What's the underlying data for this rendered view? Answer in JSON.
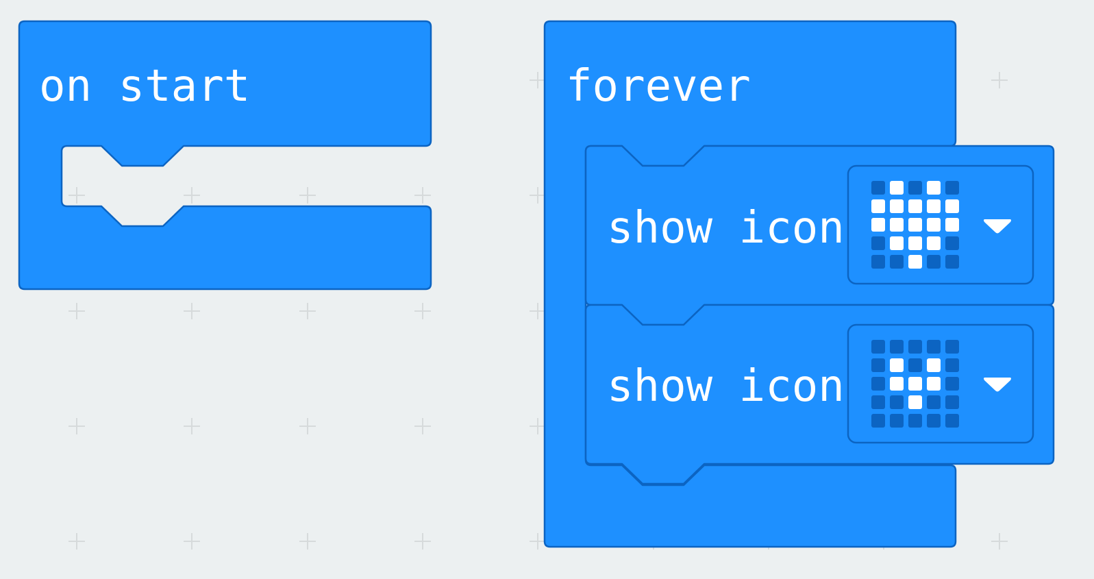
{
  "colors": {
    "workspace_bg": "#ecf0f1",
    "basic_block": "#1e90ff",
    "basic_block_border": "#0c64c2",
    "led_on": "#ffffff",
    "led_off": "#0c64c2"
  },
  "blocks": {
    "on_start": {
      "label": "on start"
    },
    "forever": {
      "label": "forever",
      "statements": [
        {
          "label": "show icon",
          "icon_name": "heart",
          "dropdown_icon": "triangle-down-icon",
          "leds": [
            [
              0,
              1,
              0,
              1,
              0
            ],
            [
              1,
              1,
              1,
              1,
              1
            ],
            [
              1,
              1,
              1,
              1,
              1
            ],
            [
              0,
              1,
              1,
              1,
              0
            ],
            [
              0,
              0,
              1,
              0,
              0
            ]
          ]
        },
        {
          "label": "show icon",
          "icon_name": "small-heart",
          "dropdown_icon": "triangle-down-icon",
          "leds": [
            [
              0,
              0,
              0,
              0,
              0
            ],
            [
              0,
              1,
              0,
              1,
              0
            ],
            [
              0,
              1,
              1,
              1,
              0
            ],
            [
              0,
              0,
              1,
              0,
              0
            ],
            [
              0,
              0,
              0,
              0,
              0
            ]
          ]
        }
      ]
    }
  }
}
